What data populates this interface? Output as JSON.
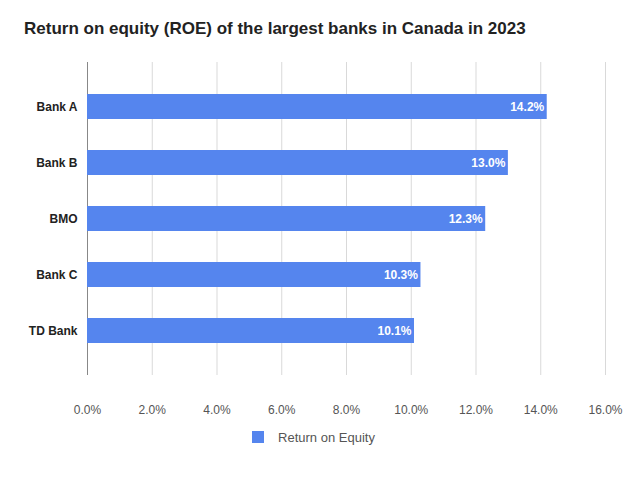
{
  "chart_data": {
    "type": "bar",
    "orientation": "horizontal",
    "title": "Return on equity (ROE) of the largest banks in Canada in 2023",
    "categories": [
      "Bank A",
      "Bank B",
      "BMO",
      "Bank C",
      "TD Bank"
    ],
    "series": [
      {
        "name": "Return on Equity",
        "color": "#5585ee",
        "values": [
          14.2,
          13.0,
          12.3,
          10.3,
          10.1
        ],
        "value_labels": [
          "14.2%",
          "13.0%",
          "12.3%",
          "10.3%",
          "10.1%"
        ]
      }
    ],
    "xlim": [
      0,
      16
    ],
    "xticks": [
      {
        "value": 0,
        "label": "0.0%"
      },
      {
        "value": 2,
        "label": "2.0%"
      },
      {
        "value": 4,
        "label": "4.0%"
      },
      {
        "value": 6,
        "label": "6.0%"
      },
      {
        "value": 8,
        "label": "8.0%"
      },
      {
        "value": 10,
        "label": "10.0%"
      },
      {
        "value": 12,
        "label": "12.0%"
      },
      {
        "value": 14,
        "label": "14.0%"
      },
      {
        "value": 16,
        "label": "16.0%"
      }
    ],
    "grid": true,
    "legend": "bottom",
    "data_labels": true
  }
}
